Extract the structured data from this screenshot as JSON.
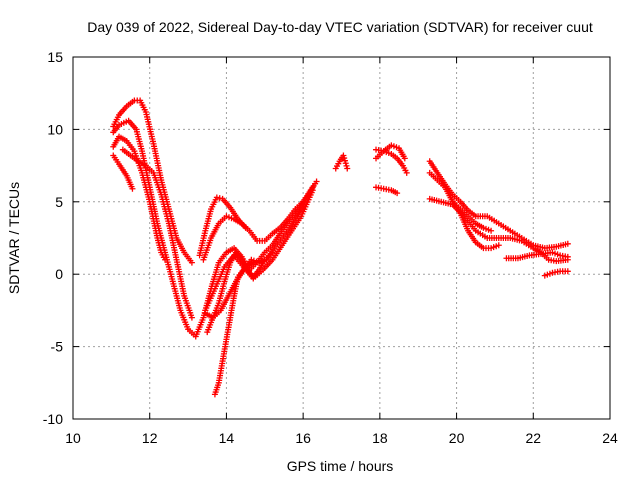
{
  "chart_data": {
    "type": "scatter",
    "title": "Day 039 of 2022, Sidereal Day-to-day VTEC variation (SDTVAR) for receiver cuut",
    "xlabel": "GPS time / hours",
    "ylabel": "SDTVAR / TECUs",
    "xlim": [
      10,
      24
    ],
    "ylim": [
      -10,
      15
    ],
    "xticks": [
      "10",
      "12",
      "14",
      "16",
      "18",
      "20",
      "22",
      "24"
    ],
    "yticks": [
      "15",
      "10",
      "5",
      "0",
      "-5",
      "-10"
    ],
    "grid": true,
    "marker": "+",
    "color": "#ff0000",
    "series": [
      {
        "name": "s1",
        "x": [
          11.05,
          11.2,
          11.4,
          11.6,
          11.75,
          11.9,
          12.1,
          12.3,
          12.5,
          12.7,
          12.9,
          13.1
        ],
        "y": [
          10.2,
          11.0,
          11.6,
          12.0,
          12.0,
          11.2,
          9.0,
          6.5,
          4.5,
          2.5,
          1.5,
          0.8
        ]
      },
      {
        "name": "s2",
        "x": [
          11.05,
          11.2,
          11.45,
          11.65,
          11.8,
          12.0,
          12.2,
          12.4,
          12.6,
          12.8,
          13.0,
          13.2,
          13.4,
          13.6,
          13.8,
          14.0,
          14.2,
          14.4,
          14.6,
          14.8,
          15.0,
          15.2,
          15.4,
          15.6,
          15.8,
          16.0,
          16.2,
          16.35
        ],
        "y": [
          9.8,
          10.3,
          10.6,
          10.0,
          8.5,
          6.0,
          3.5,
          1.5,
          -0.5,
          -2.5,
          -3.8,
          -4.3,
          -3.0,
          -1.0,
          0.8,
          1.5,
          1.8,
          1.2,
          0.3,
          0.8,
          1.5,
          2.0,
          2.8,
          3.5,
          4.2,
          5.0,
          5.8,
          6.4
        ]
      },
      {
        "name": "s3",
        "x": [
          11.05,
          11.2,
          11.4,
          11.6,
          11.8,
          12.0,
          12.2,
          12.3,
          12.4
        ],
        "y": [
          8.8,
          9.5,
          9.2,
          8.5,
          7.0,
          5.0,
          2.5,
          1.5,
          1.0
        ]
      },
      {
        "name": "s4",
        "x": [
          11.05,
          11.2,
          11.4,
          11.55
        ],
        "y": [
          8.2,
          7.6,
          6.8,
          5.9
        ]
      },
      {
        "name": "s5",
        "x": [
          11.3,
          11.5,
          11.7,
          11.9,
          12.1,
          12.3,
          12.5,
          12.7,
          12.9,
          13.1
        ],
        "y": [
          8.6,
          8.2,
          7.8,
          7.5,
          7.0,
          5.5,
          3.5,
          1.0,
          -1.5,
          -3.0
        ]
      },
      {
        "name": "s6",
        "x": [
          13.3,
          13.45,
          13.6,
          13.75,
          13.9,
          14.1,
          14.3,
          14.5
        ],
        "y": [
          1.3,
          3.0,
          4.5,
          5.3,
          5.2,
          4.6,
          3.8,
          3.2
        ]
      },
      {
        "name": "s7",
        "x": [
          13.4,
          13.6,
          13.8,
          14.0,
          14.2,
          14.4,
          14.6,
          14.8,
          15.0,
          15.2,
          15.4,
          15.6,
          15.8,
          16.0,
          16.2
        ],
        "y": [
          1.0,
          2.5,
          3.5,
          4.0,
          3.8,
          3.5,
          3.0,
          2.3,
          2.3,
          2.8,
          3.2,
          3.8,
          4.5,
          5.0,
          5.8
        ]
      },
      {
        "name": "s8",
        "x": [
          13.45,
          13.7,
          13.95,
          14.2,
          14.45,
          14.7,
          14.95,
          15.2,
          15.45,
          15.7,
          15.95,
          16.25
        ],
        "y": [
          -2.5,
          -1.0,
          0.5,
          1.3,
          0.5,
          -0.3,
          0.3,
          1.0,
          2.0,
          3.0,
          4.0,
          5.8
        ]
      },
      {
        "name": "s9",
        "x": [
          13.45,
          13.65,
          13.85,
          14.05,
          14.25,
          14.45,
          14.65,
          14.85,
          15.05,
          15.25,
          15.45,
          15.65,
          15.85,
          16.05,
          16.25
        ],
        "y": [
          -2.7,
          -3.0,
          -2.5,
          -1.5,
          -0.5,
          0.3,
          1.0,
          0.8,
          1.0,
          1.8,
          2.5,
          3.2,
          4.0,
          5.0,
          6.0
        ]
      },
      {
        "name": "s10",
        "x": [
          13.5,
          13.65,
          13.8,
          13.95,
          14.1,
          14.25,
          14.4,
          14.55,
          14.7,
          14.85,
          15.0,
          15.2
        ],
        "y": [
          -4.0,
          -3.0,
          -2.0,
          -0.5,
          0.8,
          1.5,
          1.0,
          0.3,
          -0.2,
          0.3,
          1.0,
          1.5
        ]
      },
      {
        "name": "s11",
        "x": [
          13.7,
          13.8,
          13.9,
          14.0,
          14.1,
          14.2,
          14.3,
          14.5,
          14.7
        ],
        "y": [
          -8.3,
          -7.5,
          -6.0,
          -4.5,
          -3.0,
          -1.5,
          -0.2,
          0.5,
          0.8
        ]
      },
      {
        "name": "s12",
        "x": [
          16.85,
          16.95,
          17.05,
          17.15
        ],
        "y": [
          7.3,
          7.8,
          8.2,
          7.3
        ]
      },
      {
        "name": "s13",
        "x": [
          17.9,
          18.1,
          18.3,
          18.5,
          18.65
        ],
        "y": [
          8.6,
          8.5,
          8.9,
          8.7,
          8.0
        ]
      },
      {
        "name": "s14",
        "x": [
          17.9,
          18.1,
          18.3,
          18.45,
          18.6,
          18.7
        ],
        "y": [
          8.0,
          8.5,
          8.3,
          8.0,
          7.5,
          7.0
        ]
      },
      {
        "name": "s15",
        "x": [
          17.9,
          18.1,
          18.3,
          18.45
        ],
        "y": [
          6.0,
          5.9,
          5.8,
          5.6
        ]
      },
      {
        "name": "s16",
        "x": [
          19.3,
          19.5,
          19.7,
          19.9,
          20.1,
          20.3,
          20.5,
          20.8,
          21.1,
          21.4,
          21.7,
          22.0,
          22.3,
          22.6,
          22.9
        ],
        "y": [
          7.8,
          7.0,
          6.2,
          5.5,
          5.0,
          4.4,
          4.0,
          4.0,
          3.5,
          3.0,
          2.5,
          2.0,
          1.8,
          1.9,
          2.1
        ]
      },
      {
        "name": "s17",
        "x": [
          19.3,
          19.5,
          19.7,
          19.9,
          20.1,
          20.3,
          20.5,
          20.7,
          20.9
        ],
        "y": [
          7.0,
          6.5,
          6.0,
          5.0,
          4.5,
          4.0,
          3.5,
          3.2,
          3.0
        ]
      },
      {
        "name": "s18",
        "x": [
          19.3,
          19.6,
          19.9,
          20.2,
          20.5,
          20.8,
          21.1,
          21.4,
          21.7,
          22.0,
          22.2,
          22.4,
          22.6,
          22.9
        ],
        "y": [
          5.2,
          5.0,
          4.8,
          4.0,
          3.0,
          2.5,
          2.5,
          2.5,
          2.3,
          1.8,
          1.5,
          1.0,
          0.9,
          1.0
        ]
      },
      {
        "name": "s19",
        "x": [
          19.9,
          20.1,
          20.3,
          20.5,
          20.7,
          20.9,
          21.1
        ],
        "y": [
          5.0,
          4.2,
          3.0,
          2.2,
          1.8,
          1.8,
          2.0
        ]
      },
      {
        "name": "s20",
        "x": [
          21.3,
          21.6,
          21.9,
          22.2,
          22.5,
          22.7,
          22.9
        ],
        "y": [
          1.1,
          1.1,
          1.3,
          1.4,
          1.5,
          1.3,
          1.2
        ]
      },
      {
        "name": "s21",
        "x": [
          22.3,
          22.5,
          22.7,
          22.9
        ],
        "y": [
          -0.1,
          0.1,
          0.2,
          0.2
        ]
      }
    ]
  }
}
